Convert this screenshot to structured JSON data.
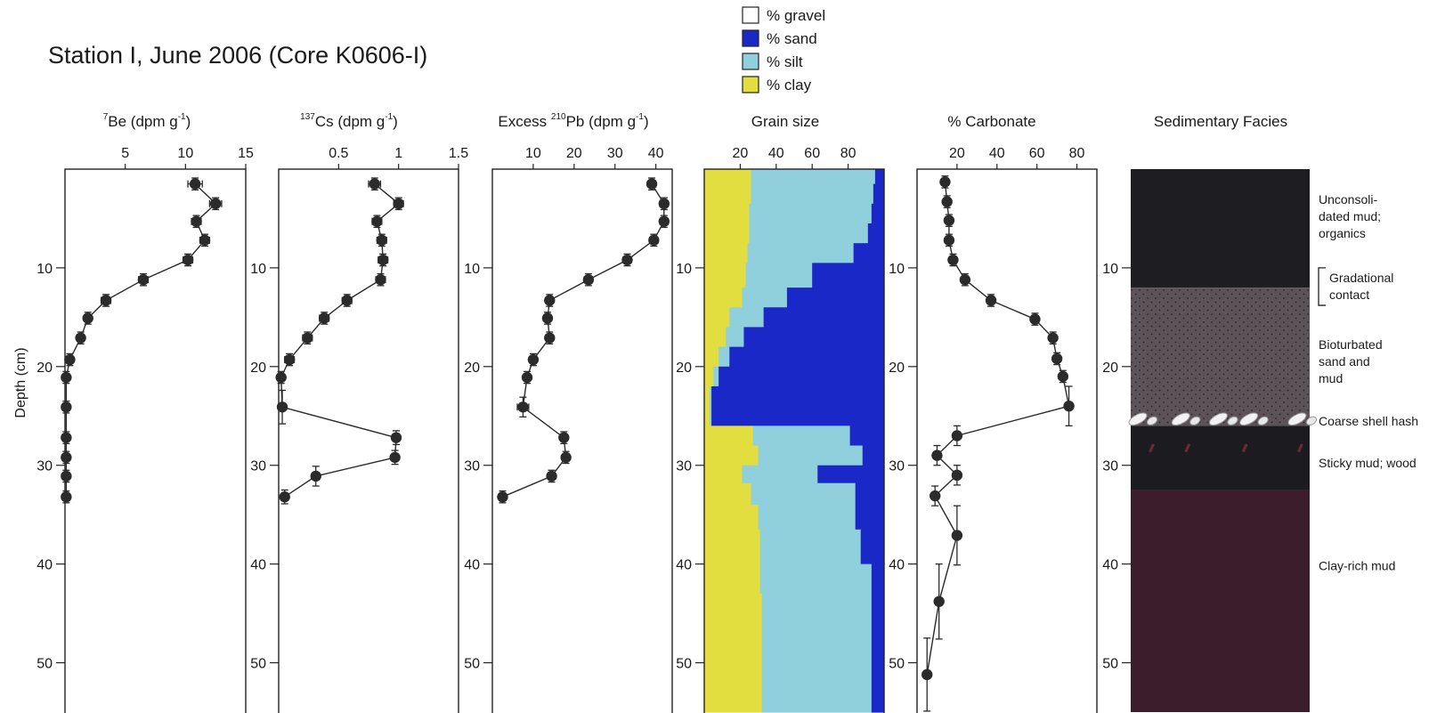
{
  "title": "Station I, June 2006 (Core K0606-I)",
  "ylabel": "Depth (cm)",
  "depth_axis": {
    "range": [
      0,
      55
    ],
    "ticks": [
      10,
      20,
      30,
      40,
      50
    ]
  },
  "legend": [
    {
      "label": "% gravel",
      "color": "#ffffff"
    },
    {
      "label": "% sand",
      "color": "#1a28c8"
    },
    {
      "label": "% silt",
      "color": "#8fd0dc"
    },
    {
      "label": "% clay",
      "color": "#e3de3f"
    }
  ],
  "chart_data": [
    {
      "type": "scatter",
      "title_parts": [
        "",
        "7",
        "Be (dpm g",
        "-1",
        ")"
      ],
      "xlim": [
        0,
        15
      ],
      "xticks": [
        5,
        10,
        15
      ],
      "points": [
        {
          "x": 10.8,
          "y": 1.5,
          "err": 0.6
        },
        {
          "x": 12.5,
          "y": 3.5,
          "err": 0.5
        },
        {
          "x": 10.9,
          "y": 5.3,
          "err": 0.4
        },
        {
          "x": 11.6,
          "y": 7.2,
          "err": 0.4
        },
        {
          "x": 10.2,
          "y": 9.2,
          "err": 0.4
        },
        {
          "x": 6.5,
          "y": 11.2,
          "err": 0.4
        },
        {
          "x": 3.4,
          "y": 13.3,
          "err": 0.4
        },
        {
          "x": 1.9,
          "y": 15.1,
          "err": 0.3
        },
        {
          "x": 1.3,
          "y": 17.1,
          "err": 0.3
        },
        {
          "x": 0.4,
          "y": 19.3,
          "err": 0.2
        },
        {
          "x": 0.1,
          "y": 21.1,
          "err": 0.2
        },
        {
          "x": 0.1,
          "y": 24.1,
          "err": 0.2
        },
        {
          "x": 0.1,
          "y": 27.2,
          "err": 0.2
        },
        {
          "x": 0.1,
          "y": 29.2,
          "err": 0.2
        },
        {
          "x": 0.1,
          "y": 31.1,
          "err": 0.2
        },
        {
          "x": 0.1,
          "y": 33.2,
          "err": 0.2
        }
      ]
    },
    {
      "type": "scatter",
      "title_parts": [
        "",
        "137",
        "Cs (dpm g",
        "-1",
        ")"
      ],
      "xlim": [
        0,
        1.5
      ],
      "xticks": [
        0.5,
        1,
        1.5
      ],
      "points": [
        {
          "x": 0.8,
          "y": 1.5,
          "err": 0.05
        },
        {
          "x": 1.0,
          "y": 3.5,
          "err": 0.04
        },
        {
          "x": 0.82,
          "y": 5.3,
          "err": 0.04
        },
        {
          "x": 0.86,
          "y": 7.2,
          "err": 0.04
        },
        {
          "x": 0.87,
          "y": 9.2,
          "err": 0.04
        },
        {
          "x": 0.85,
          "y": 11.2,
          "err": 0.04
        },
        {
          "x": 0.57,
          "y": 13.3,
          "err": 0.04
        },
        {
          "x": 0.38,
          "y": 15.1,
          "err": 0.04
        },
        {
          "x": 0.24,
          "y": 17.1,
          "err": 0.04
        },
        {
          "x": 0.09,
          "y": 19.3,
          "err": 0.04
        },
        {
          "x": 0.02,
          "y": 21.1,
          "err": 0.03
        },
        {
          "x": 0.03,
          "y": 24.1,
          "err": 0.03,
          "yerr": 1.7
        },
        {
          "x": 0.98,
          "y": 27.2,
          "err": 0.03,
          "yerr": 0.7
        },
        {
          "x": 0.97,
          "y": 29.2,
          "err": 0.03,
          "yerr": 0.7
        },
        {
          "x": 0.31,
          "y": 31.1,
          "err": 0.03,
          "yerr": 1.0
        },
        {
          "x": 0.05,
          "y": 33.2,
          "err": 0.03,
          "yerr": 0.7
        }
      ]
    },
    {
      "type": "scatter",
      "title_parts": [
        "Excess ",
        "210",
        "Pb (dpm g",
        "-1",
        ")"
      ],
      "xlim": [
        0,
        44
      ],
      "xticks": [
        10,
        20,
        30,
        40
      ],
      "points": [
        {
          "x": 39,
          "y": 1.5,
          "err": 1
        },
        {
          "x": 42,
          "y": 3.5,
          "err": 1
        },
        {
          "x": 42,
          "y": 5.3,
          "err": 1
        },
        {
          "x": 39.5,
          "y": 7.2,
          "err": 1
        },
        {
          "x": 33,
          "y": 9.2,
          "err": 1
        },
        {
          "x": 23.5,
          "y": 11.2,
          "err": 1
        },
        {
          "x": 14,
          "y": 13.3,
          "err": 0.8
        },
        {
          "x": 13.5,
          "y": 15.1,
          "err": 0.8
        },
        {
          "x": 14,
          "y": 17.1,
          "err": 0.8
        },
        {
          "x": 10,
          "y": 19.3,
          "err": 0.8
        },
        {
          "x": 8.5,
          "y": 21.1,
          "err": 0.8
        },
        {
          "x": 7.5,
          "y": 24.1,
          "err": 1.4,
          "yerr": 1.0
        },
        {
          "x": 17.5,
          "y": 27.2,
          "err": 0.8
        },
        {
          "x": 18,
          "y": 29.2,
          "err": 0.8
        },
        {
          "x": 14.5,
          "y": 31.1,
          "err": 0.8
        },
        {
          "x": 2.5,
          "y": 33.2,
          "err": 0.8
        }
      ]
    },
    {
      "type": "area",
      "title": "Grain size",
      "xlim": [
        0,
        100
      ],
      "xticks": [
        20,
        40,
        60,
        80
      ],
      "series_order": [
        "% clay",
        "% silt",
        "% sand",
        "% gravel"
      ],
      "layers": [
        {
          "top": 0,
          "bottom": 1.5,
          "clay": 26,
          "silt": 69,
          "sand": 5,
          "gravel": 0
        },
        {
          "top": 1.5,
          "bottom": 3.5,
          "clay": 26,
          "silt": 68,
          "sand": 6,
          "gravel": 0
        },
        {
          "top": 3.5,
          "bottom": 5.5,
          "clay": 25,
          "silt": 68,
          "sand": 7,
          "gravel": 0
        },
        {
          "top": 5.5,
          "bottom": 7.5,
          "clay": 25,
          "silt": 66,
          "sand": 9,
          "gravel": 0
        },
        {
          "top": 7.5,
          "bottom": 9.5,
          "clay": 24,
          "silt": 59,
          "sand": 17,
          "gravel": 0
        },
        {
          "top": 9.5,
          "bottom": 12.0,
          "clay": 23,
          "silt": 37,
          "sand": 40,
          "gravel": 0
        },
        {
          "top": 12.0,
          "bottom": 14.0,
          "clay": 21,
          "silt": 25,
          "sand": 54,
          "gravel": 0
        },
        {
          "top": 14.0,
          "bottom": 16.0,
          "clay": 14,
          "silt": 19,
          "sand": 67,
          "gravel": 0
        },
        {
          "top": 16.0,
          "bottom": 18.0,
          "clay": 12,
          "silt": 10,
          "sand": 78,
          "gravel": 0
        },
        {
          "top": 18.0,
          "bottom": 20.0,
          "clay": 8,
          "silt": 6,
          "sand": 86,
          "gravel": 0
        },
        {
          "top": 20.0,
          "bottom": 22.0,
          "clay": 5,
          "silt": 3,
          "sand": 92,
          "gravel": 0
        },
        {
          "top": 22.0,
          "bottom": 26.0,
          "clay": 3,
          "silt": 1,
          "sand": 96,
          "gravel": 0
        },
        {
          "top": 26.0,
          "bottom": 28.0,
          "clay": 27,
          "silt": 54,
          "sand": 19,
          "gravel": 0
        },
        {
          "top": 28.0,
          "bottom": 30.0,
          "clay": 30,
          "silt": 58,
          "sand": 12,
          "gravel": 0
        },
        {
          "top": 30.0,
          "bottom": 31.8,
          "clay": 21,
          "silt": 42,
          "sand": 37,
          "gravel": 0
        },
        {
          "top": 31.8,
          "bottom": 34.0,
          "clay": 26,
          "silt": 58,
          "sand": 16,
          "gravel": 0
        },
        {
          "top": 34.0,
          "bottom": 36.5,
          "clay": 30,
          "silt": 54,
          "sand": 16,
          "gravel": 0
        },
        {
          "top": 36.5,
          "bottom": 40.0,
          "clay": 31,
          "silt": 56,
          "sand": 13,
          "gravel": 0
        },
        {
          "top": 40.0,
          "bottom": 43.0,
          "clay": 31,
          "silt": 62,
          "sand": 7,
          "gravel": 0
        },
        {
          "top": 43.0,
          "bottom": 55.0,
          "clay": 32,
          "silt": 61,
          "sand": 7,
          "gravel": 0
        }
      ]
    },
    {
      "type": "line",
      "title": "% Carbonate",
      "xlim": [
        0,
        90
      ],
      "xticks": [
        20,
        40,
        60,
        80
      ],
      "points": [
        {
          "x": 14,
          "y": 1.3,
          "err": 0.8
        },
        {
          "x": 15,
          "y": 3.3,
          "err": 0.8
        },
        {
          "x": 16,
          "y": 5.2,
          "err": 0.8
        },
        {
          "x": 16,
          "y": 7.2,
          "err": 0.8
        },
        {
          "x": 18,
          "y": 9.2,
          "err": 0.8
        },
        {
          "x": 24,
          "y": 11.2,
          "err": 1.0
        },
        {
          "x": 37,
          "y": 13.3,
          "err": 1.0
        },
        {
          "x": 59,
          "y": 15.2,
          "err": 1.0
        },
        {
          "x": 68,
          "y": 17.1,
          "err": 1.0
        },
        {
          "x": 70,
          "y": 19.2,
          "err": 1.0
        },
        {
          "x": 73,
          "y": 21.0,
          "err": 1.0
        },
        {
          "x": 76,
          "y": 24.0,
          "err": 1.0,
          "yerr": 2.0
        },
        {
          "x": 20,
          "y": 27.0,
          "err": 1.0,
          "yerr": 1.0
        },
        {
          "x": 10,
          "y": 29.0,
          "err": 1.0,
          "yerr": 1.0
        },
        {
          "x": 20,
          "y": 31.0,
          "err": 1.0,
          "yerr": 1.0
        },
        {
          "x": 9,
          "y": 33.1,
          "err": 1.0,
          "yerr": 1.0
        },
        {
          "x": 20,
          "y": 37.1,
          "err": 1.0,
          "yerr": 3.0
        },
        {
          "x": 11,
          "y": 43.8,
          "err": 1.0,
          "yerr": 3.8
        },
        {
          "x": 5,
          "y": 51.2,
          "err": 1.0,
          "yerr": 3.7
        }
      ]
    },
    {
      "type": "table",
      "title": "Sedimentary Facies",
      "facies": [
        {
          "top": 0,
          "bottom": 12,
          "fill": "#1e1e22",
          "pattern": "none",
          "label": [
            "Unconsoli-",
            "dated mud;",
            "organics"
          ],
          "label_depth": 3.5
        },
        {
          "top": 12,
          "bottom": 26,
          "fill": "#5b5358",
          "pattern": "dots",
          "label": [
            "Bioturbated",
            "sand and",
            "mud"
          ],
          "label_depth": 18.2
        },
        {
          "top": 26,
          "bottom": 32.5,
          "fill": "#1c1c20",
          "pattern": "wood",
          "label": [
            "Sticky mud; wood"
          ],
          "label_depth": 30.2
        },
        {
          "top": 32.5,
          "bottom": 55,
          "fill": "#3b1d2b",
          "pattern": "none",
          "label": [
            "Clay-rich mud"
          ],
          "label_depth": 40.6
        }
      ],
      "contacts": [
        {
          "label": [
            "Gradational",
            "contact"
          ],
          "top": 10.0,
          "bottom": 13.8
        }
      ],
      "shell_hash": {
        "label": "Coarse shell hash",
        "depth": 25.5
      }
    }
  ]
}
